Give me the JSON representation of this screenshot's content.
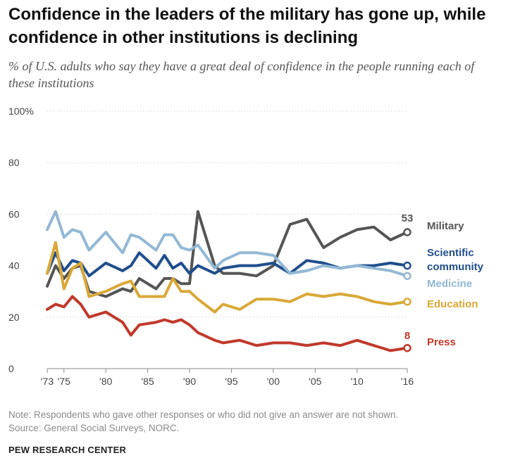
{
  "title": "Confidence in the leaders of the military has gone up, while confidence in other institutions is declining",
  "subtitle": "% of U.S. adults who say they have a great deal of confidence in the people running each of these institutions",
  "note": "Note: Respondents who gave other responses or who did not give an answer are not shown.",
  "source": "Source: General Social Surveys, NORC.",
  "organization": "PEW RESEARCH CENTER",
  "chart_data": {
    "type": "line",
    "title": "Confidence in the leaders of the military has gone up, while confidence in other institutions is declining",
    "subtitle": "% of U.S. adults who say they have a great deal of confidence in the people running each of these institutions",
    "xlabel": "",
    "ylabel": "",
    "xlim": [
      1973,
      2016
    ],
    "ylim": [
      0,
      100
    ],
    "grid": "horizontal dotted",
    "legend": "labels at right end of each line",
    "x_ticks": [
      1973,
      1975,
      1980,
      1985,
      1990,
      1995,
      2000,
      2005,
      2010,
      2016
    ],
    "x_tick_labels": [
      "'73",
      "'75",
      "'80",
      "'85",
      "'90",
      "'95",
      "'00",
      "'05",
      "'10",
      "'16"
    ],
    "y_ticks": [
      0,
      20,
      40,
      60,
      80,
      100
    ],
    "y_tick_labels": [
      "0",
      "20",
      "40",
      "60",
      "80",
      "100%"
    ],
    "x": [
      1973,
      1974,
      1975,
      1976,
      1977,
      1978,
      1980,
      1982,
      1983,
      1984,
      1986,
      1987,
      1988,
      1989,
      1990,
      1991,
      1993,
      1994,
      1996,
      1998,
      2000,
      2002,
      2004,
      2006,
      2008,
      2010,
      2012,
      2014,
      2016
    ],
    "series": [
      {
        "name": "Military",
        "color": "#555555",
        "end_label": "53",
        "values": [
          32,
          40,
          35,
          39,
          40,
          30,
          28,
          31,
          30,
          35,
          31,
          35,
          35,
          33,
          33,
          61,
          40,
          37,
          37,
          36,
          40,
          56,
          58,
          47,
          51,
          54,
          55,
          50,
          53
        ]
      },
      {
        "name": "Scientific community",
        "color": "#1f4e8c",
        "end_label": "",
        "values": [
          37,
          45,
          38,
          42,
          41,
          36,
          41,
          38,
          40,
          45,
          39,
          44,
          39,
          41,
          37,
          40,
          37,
          39,
          40,
          40,
          41,
          37,
          42,
          41,
          39,
          40,
          40,
          41,
          40
        ]
      },
      {
        "name": "Medicine",
        "color": "#93b8d4",
        "end_label": "",
        "values": [
          54,
          61,
          51,
          54,
          53,
          46,
          53,
          45,
          52,
          51,
          46,
          52,
          52,
          47,
          46,
          48,
          39,
          42,
          45,
          45,
          44,
          37,
          38,
          40,
          39,
          40,
          39,
          38,
          36
        ]
      },
      {
        "name": "Education",
        "color": "#d9a837",
        "end_label": "",
        "values": [
          37,
          49,
          31,
          39,
          41,
          28,
          30,
          33,
          34,
          28,
          28,
          28,
          35,
          30,
          30,
          27,
          22,
          25,
          23,
          27,
          27,
          26,
          29,
          28,
          29,
          28,
          26,
          25,
          26
        ]
      },
      {
        "name": "Press",
        "color": "#c0392b",
        "end_label": "8",
        "values": [
          23,
          25,
          24,
          28,
          25,
          20,
          22,
          18,
          13,
          17,
          18,
          19,
          18,
          19,
          17,
          14,
          11,
          10,
          11,
          9,
          10,
          10,
          9,
          10,
          9,
          11,
          9,
          7,
          8
        ]
      }
    ]
  }
}
